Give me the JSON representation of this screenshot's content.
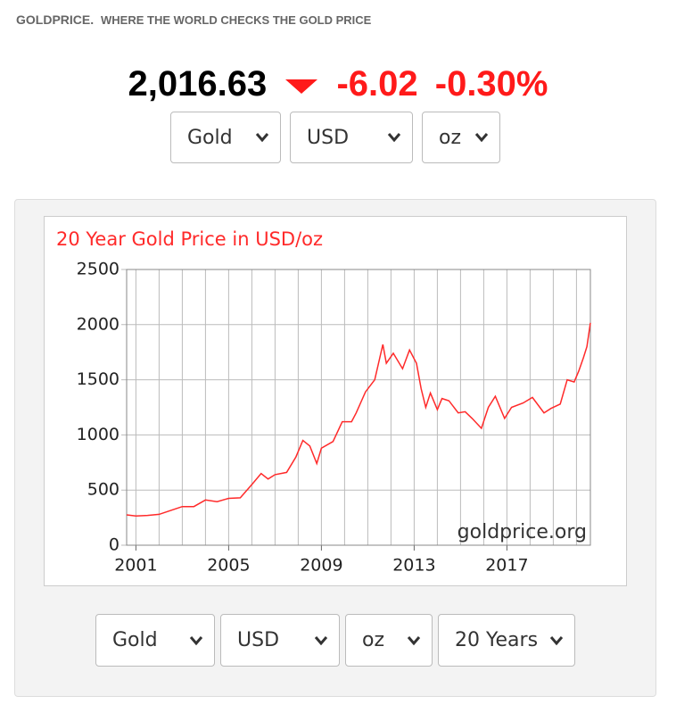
{
  "header": {
    "brand": "GOLDPRICE.",
    "tagline": "WHERE THE WORLD CHECKS THE GOLD PRICE"
  },
  "quote": {
    "price": "2,016.63",
    "change": "-6.02",
    "change_pct": "-0.30%"
  },
  "top_selectors": [
    "Gold",
    "USD",
    "oz"
  ],
  "bottom_selectors": [
    "Gold",
    "USD",
    "oz",
    "20 Years"
  ],
  "chart_data": {
    "type": "line",
    "title": "20 Year Gold Price in USD/oz",
    "watermark": "goldprice.org",
    "xlim": [
      2000.6,
      2020.6
    ],
    "xticks": [
      2001,
      2005,
      2009,
      2013,
      2017
    ],
    "xgrid": [
      2001,
      2002,
      2003,
      2004,
      2005,
      2006,
      2007,
      2008,
      2009,
      2010,
      2011,
      2012,
      2013,
      2014,
      2015,
      2016,
      2017,
      2018,
      2019,
      2020
    ],
    "ylim": [
      0,
      2500
    ],
    "yticks": [
      0,
      500,
      1000,
      1500,
      2000,
      2500
    ],
    "grid": true,
    "series": [
      {
        "name": "Gold",
        "color": "#ff2a2a",
        "x": [
          2000.6,
          2001,
          2001.5,
          2002,
          2002.5,
          2003,
          2003.5,
          2004,
          2004.5,
          2005,
          2005.5,
          2006,
          2006.4,
          2006.7,
          2007,
          2007.5,
          2007.9,
          2008.2,
          2008.5,
          2008.8,
          2009,
          2009.5,
          2009.9,
          2010.3,
          2010.5,
          2010.9,
          2011.3,
          2011.65,
          2011.8,
          2012.1,
          2012.5,
          2012.8,
          2013.1,
          2013.3,
          2013.5,
          2013.7,
          2014,
          2014.2,
          2014.5,
          2014.9,
          2015.2,
          2015.5,
          2015.9,
          2016.2,
          2016.5,
          2016.9,
          2017.2,
          2017.7,
          2018.1,
          2018.6,
          2018.9,
          2019.3,
          2019.6,
          2019.9,
          2020.1,
          2020.3,
          2020.45,
          2020.6
        ],
        "values": [
          275,
          265,
          270,
          280,
          315,
          350,
          350,
          410,
          395,
          425,
          430,
          550,
          650,
          600,
          640,
          660,
          800,
          950,
          900,
          740,
          880,
          940,
          1120,
          1120,
          1200,
          1390,
          1500,
          1820,
          1650,
          1740,
          1600,
          1770,
          1650,
          1420,
          1250,
          1380,
          1230,
          1330,
          1310,
          1200,
          1210,
          1150,
          1060,
          1250,
          1350,
          1150,
          1250,
          1290,
          1340,
          1200,
          1240,
          1280,
          1500,
          1480,
          1580,
          1700,
          1800,
          2016
        ]
      }
    ]
  }
}
